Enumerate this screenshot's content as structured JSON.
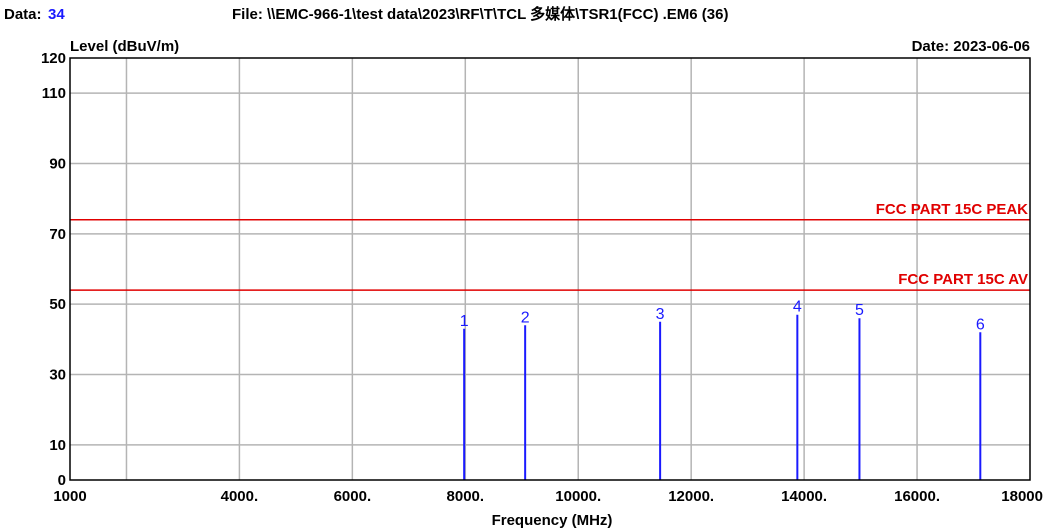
{
  "header": {
    "data_label": "Data:",
    "data_value": "34",
    "file_text": "File: \\\\EMC-966-1\\test data\\2023\\RF\\T\\TCL 多媒体\\TSR1(FCC) .EM6  (36)",
    "date_text": "Date: 2023-06-06"
  },
  "colors": {
    "limit": "#e00000",
    "marker": "#1a1aff",
    "data_value": "#1a1aff",
    "grid": "#b4b4b4"
  },
  "chart_data": {
    "type": "bar",
    "ylabel": "Level (dBuV/m)",
    "xlabel": "Frequency (MHz)",
    "xlim": [
      1000,
      18000
    ],
    "ylim": [
      0,
      120
    ],
    "x_ticks": [
      {
        "value": 1000,
        "label": "1000"
      },
      {
        "value": 4000,
        "label": "4000."
      },
      {
        "value": 6000,
        "label": "6000."
      },
      {
        "value": 8000,
        "label": "8000."
      },
      {
        "value": 10000,
        "label": "10000."
      },
      {
        "value": 12000,
        "label": "12000."
      },
      {
        "value": 14000,
        "label": "14000."
      },
      {
        "value": 16000,
        "label": "16000."
      },
      {
        "value": 18000,
        "label": "18000"
      }
    ],
    "x_grid": [
      2000,
      4000,
      6000,
      8000,
      10000,
      12000,
      14000,
      16000
    ],
    "y_ticks": [
      {
        "value": 0,
        "label": "0"
      },
      {
        "value": 10,
        "label": "10"
      },
      {
        "value": 30,
        "label": "30"
      },
      {
        "value": 50,
        "label": "50"
      },
      {
        "value": 70,
        "label": "70"
      },
      {
        "value": 90,
        "label": "90"
      },
      {
        "value": 110,
        "label": "110"
      },
      {
        "value": 120,
        "label": "120"
      }
    ],
    "y_grid": [
      10,
      30,
      50,
      70,
      90,
      110
    ],
    "limits": [
      {
        "name": "FCC PART 15C PEAK",
        "value": 74
      },
      {
        "name": "FCC PART 15C  AV",
        "value": 54
      }
    ],
    "markers": [
      {
        "label": "1",
        "x": 7980,
        "y": 43
      },
      {
        "label": "2",
        "x": 9060,
        "y": 44
      },
      {
        "label": "3",
        "x": 11450,
        "y": 45
      },
      {
        "label": "4",
        "x": 13880,
        "y": 47
      },
      {
        "label": "5",
        "x": 14980,
        "y": 46
      },
      {
        "label": "6",
        "x": 17120,
        "y": 42
      }
    ]
  }
}
